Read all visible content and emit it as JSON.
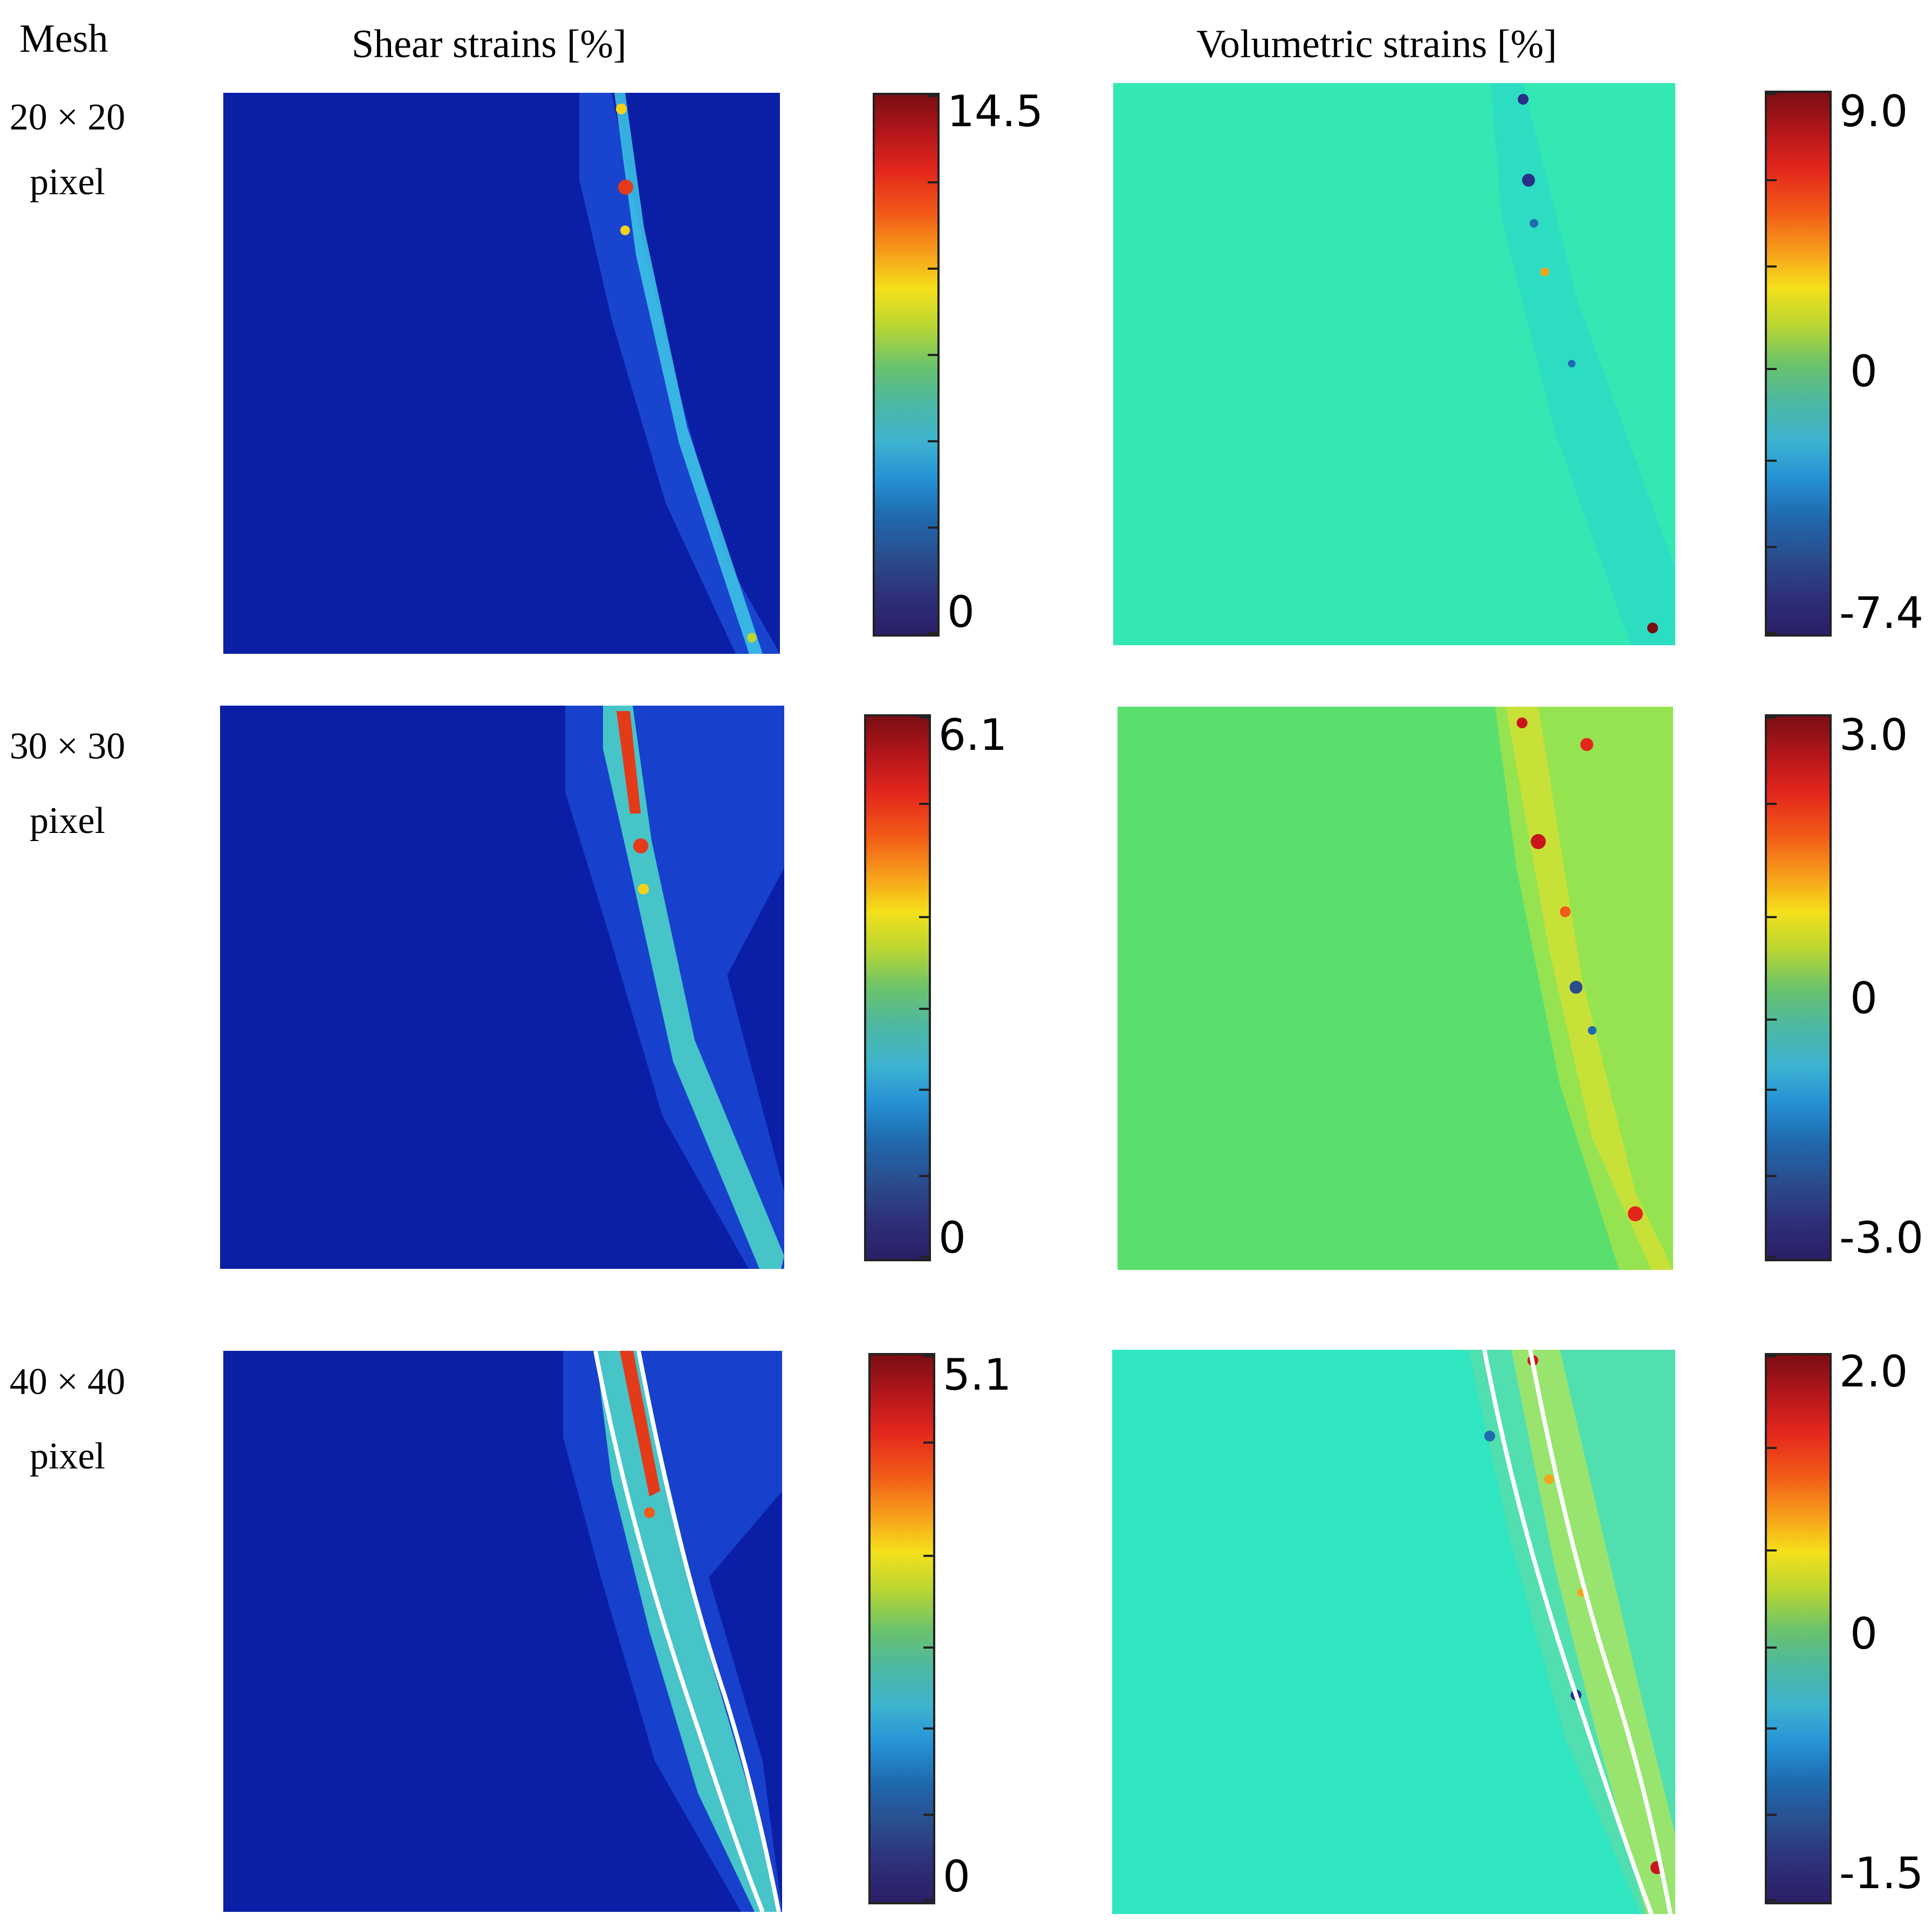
{
  "headers": {
    "mesh": "Mesh",
    "shear": "Shear strains [%]",
    "volumetric": "Volumetric strains [%]"
  },
  "rows": [
    {
      "mesh_size": "20 × 20",
      "mesh_unit": "pixel",
      "shear_colorbar": {
        "max": "14.5",
        "min": "0"
      },
      "volumetric_colorbar": {
        "max": "9.0",
        "mid": "0",
        "min": "-7.4"
      }
    },
    {
      "mesh_size": "30 × 30",
      "mesh_unit": "pixel",
      "shear_colorbar": {
        "max": "6.1",
        "min": "0"
      },
      "volumetric_colorbar": {
        "max": "3.0",
        "mid": "0",
        "min": "-3.0"
      }
    },
    {
      "mesh_size": "40 × 40",
      "mesh_unit": "pixel",
      "shear_colorbar": {
        "max": "5.1",
        "min": "0"
      },
      "volumetric_colorbar": {
        "max": "2.0",
        "mid": "0",
        "min": "-1.5"
      }
    }
  ],
  "colors": {
    "shear_background": "#0a1fa8",
    "volumetric_background_row1": "#33e8b2",
    "volumetric_background_row2": "#5ade6e",
    "volumetric_background_row3": "#2fe6c0",
    "shear_band_outline": "#ffffff"
  }
}
